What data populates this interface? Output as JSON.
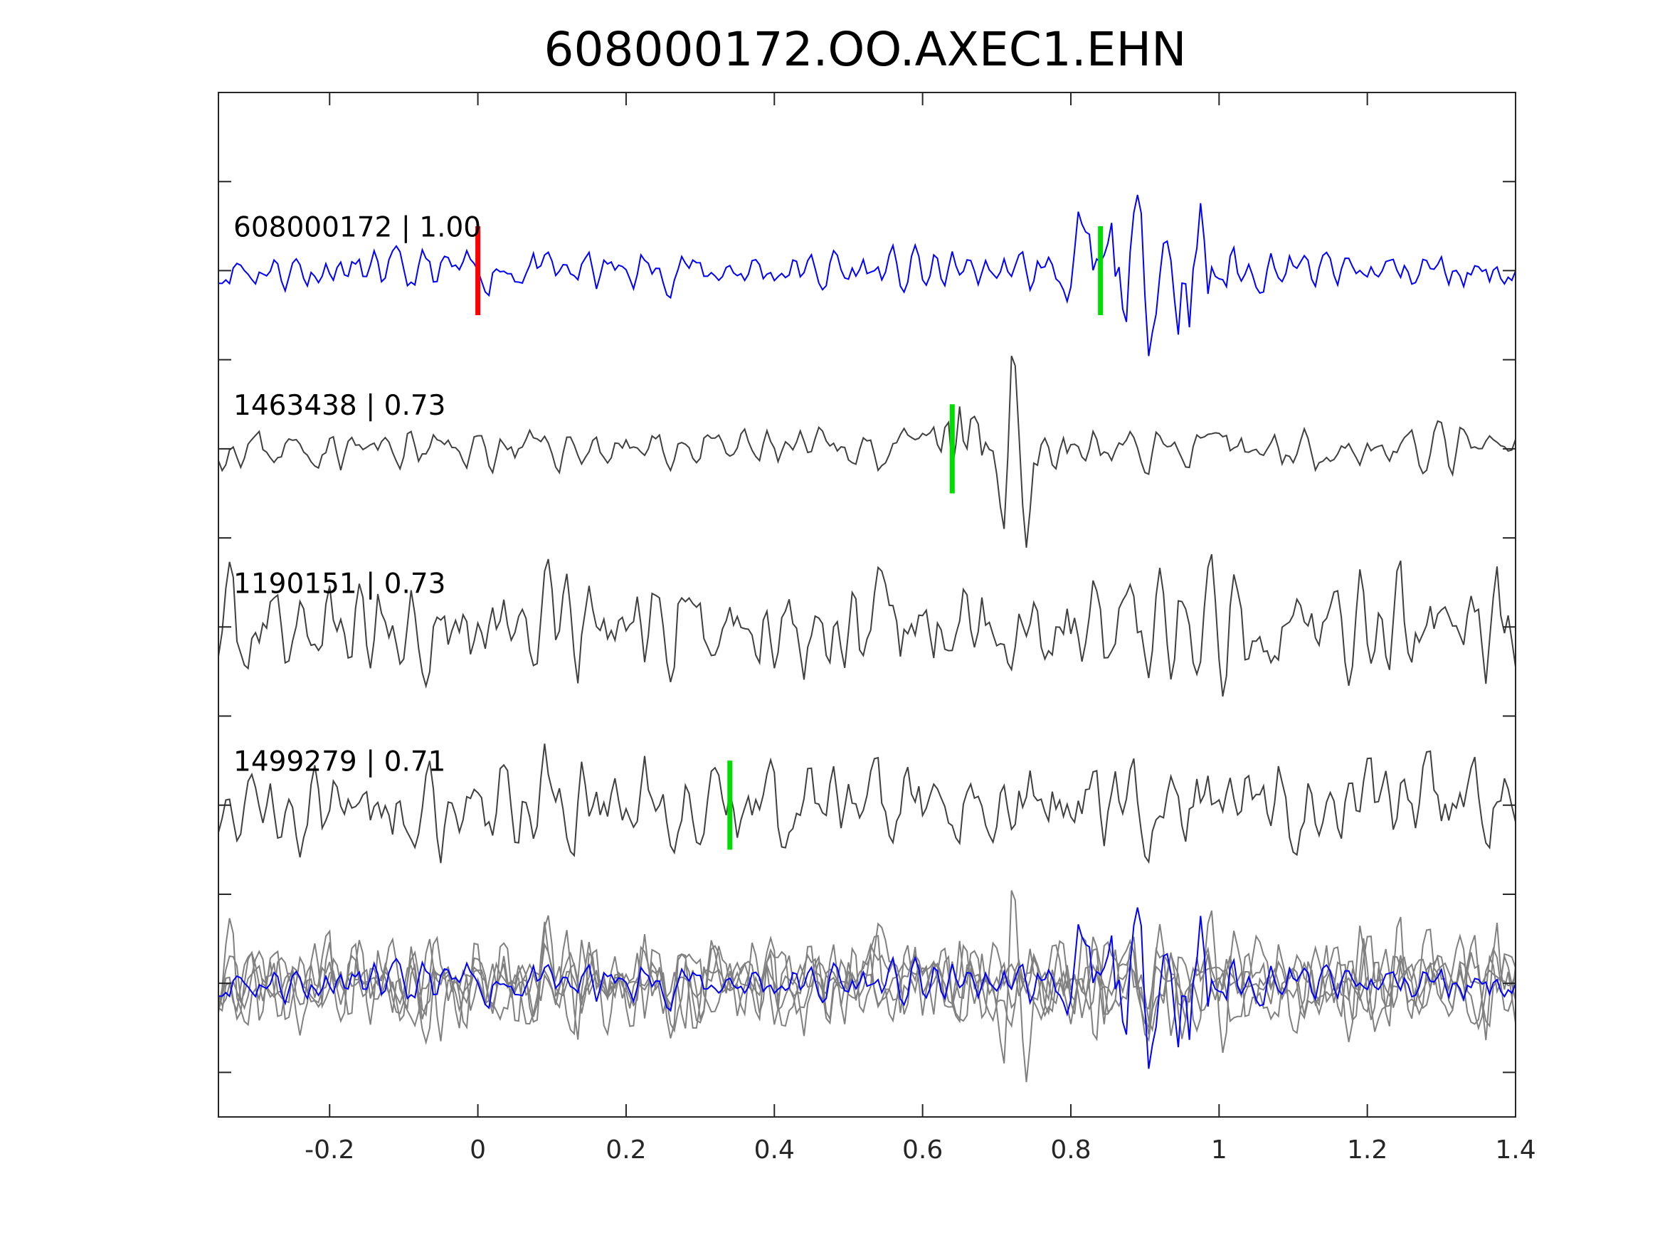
{
  "chart_data": {
    "type": "line",
    "title": "608000172.OO.AXEC1.EHN",
    "xlabel": "",
    "ylabel": "",
    "xlim": [
      -0.35,
      1.4
    ],
    "ylim": [
      -4.75,
      1.0
    ],
    "xticks": [
      -0.2,
      0,
      0.2,
      0.4,
      0.6,
      0.8,
      1,
      1.2,
      1.4
    ],
    "xtick_labels": [
      "-0.2",
      "0",
      "0.2",
      "0.4",
      "0.6",
      "0.8",
      "1",
      "1.2",
      "1.4"
    ],
    "yticks": [
      0.5,
      0,
      -0.5,
      -1,
      -1.5,
      -2,
      -2.5,
      -3,
      -3.5,
      -4,
      -4.5
    ],
    "ytick_labels_shown": false,
    "grid": false,
    "traces": [
      {
        "label": "608000172 | 1.00",
        "offset": 0,
        "color": "#0000ff",
        "seed": 11,
        "amp": 0.13,
        "bursts": [
          [
            0.86,
            0.35,
            0.06
          ],
          [
            0.97,
            0.45,
            0.04
          ]
        ],
        "picks": [
          {
            "x": 0,
            "color": "#ff0000"
          },
          {
            "x": 0.84,
            "color": "#00dd00"
          }
        ]
      },
      {
        "label": "1463438 | 0.73",
        "offset": -1,
        "color": "#404040",
        "seed": 23,
        "amp": 0.12,
        "bursts": [
          [
            0.72,
            0.45,
            0.05
          ],
          [
            0.64,
            0.25,
            0.03
          ]
        ],
        "picks": [
          {
            "x": 0.64,
            "color": "#00dd00"
          }
        ]
      },
      {
        "label": "1190151 | 0.73",
        "offset": -2,
        "color": "#404040",
        "seed": 37,
        "amp": 0.3,
        "bursts": [],
        "picks": []
      },
      {
        "label": "1499279 | 0.71",
        "offset": -3,
        "color": "#404040",
        "seed": 51,
        "amp": 0.28,
        "bursts": [],
        "picks": [
          {
            "x": 0.34,
            "color": "#00dd00"
          }
        ]
      }
    ],
    "stack": {
      "offset": -4,
      "gray_color": "#808080",
      "highlight_color": "#0000ff",
      "extra_seeds": [
        67,
        79
      ]
    },
    "pick_half_height": 0.25,
    "sample_interval": 0.005
  }
}
